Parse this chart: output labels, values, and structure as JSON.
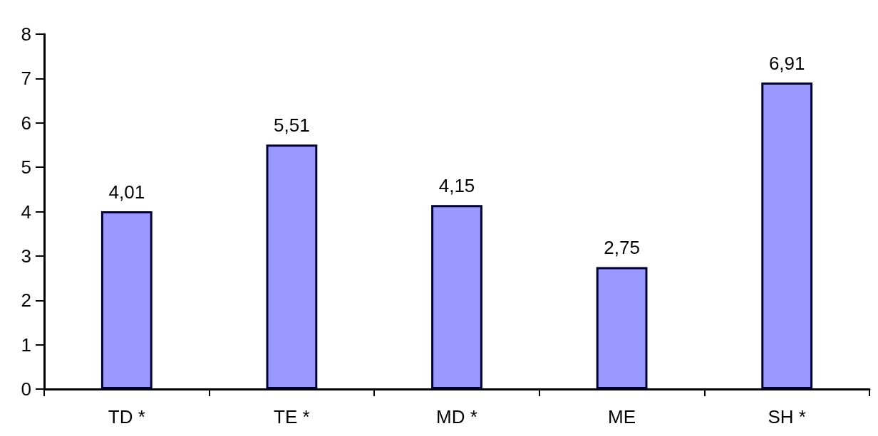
{
  "chart_data": {
    "type": "bar",
    "categories": [
      "TD *",
      "TE *",
      "MD *",
      "ME",
      "SH *"
    ],
    "values": [
      4.01,
      5.51,
      4.15,
      2.75,
      6.91
    ],
    "value_labels": [
      "4,01",
      "5,51",
      "4,15",
      "2,75",
      "6,91"
    ],
    "color": "#9999ff",
    "ylim": [
      0,
      8
    ],
    "yticks": [
      0,
      1,
      2,
      3,
      4,
      5,
      6,
      7,
      8
    ],
    "grid": false
  }
}
